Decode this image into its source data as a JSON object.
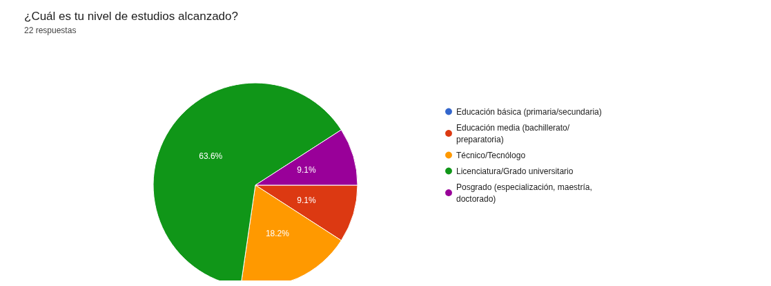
{
  "chart_data": {
    "type": "pie",
    "title": "¿Cuál es tu nivel de estudios alcanzado?",
    "subtitle": "22 respuestas",
    "categories": [
      "Educación básica (primaria/secundaria)",
      "Educación media (bachillerato/ preparatoria)",
      "Técnico/Tecnólogo",
      "Licenciatura/Grado universitario",
      "Posgrado (especialización, maestría, doctorado)"
    ],
    "values": [
      0,
      9.1,
      18.2,
      63.6,
      9.1
    ],
    "colors": [
      "#3366cc",
      "#dc3912",
      "#ff9900",
      "#109618",
      "#990099"
    ],
    "value_labels": [
      null,
      "9.1%",
      "18.2%",
      "63.6%",
      "9.1%"
    ],
    "legend": "right"
  }
}
